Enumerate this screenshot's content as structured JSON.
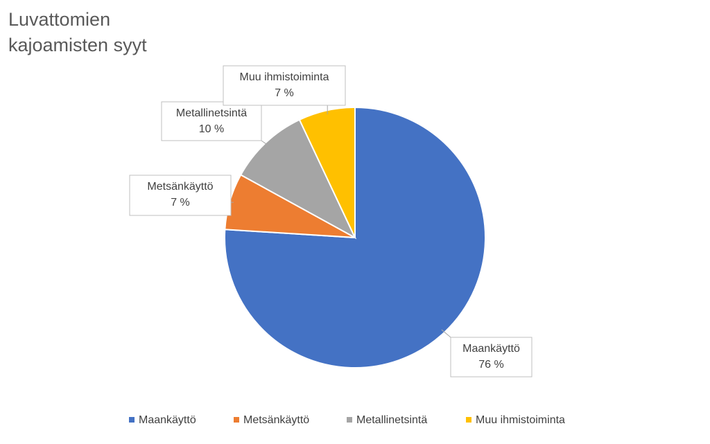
{
  "chart_data": {
    "type": "pie",
    "title": "Luvattomien kajoamisten syyt",
    "categories": [
      "Maankäyttö",
      "Metsänkäyttö",
      "Metallinetsintä",
      "Muu ihmistoiminta"
    ],
    "values": [
      76,
      7,
      10,
      7
    ],
    "value_labels": [
      "76 %",
      "7 %",
      "10 %",
      "7 %"
    ],
    "colors": [
      "#4472c4",
      "#ed7d31",
      "#a5a5a5",
      "#ffc000"
    ],
    "legend": "bottom"
  }
}
